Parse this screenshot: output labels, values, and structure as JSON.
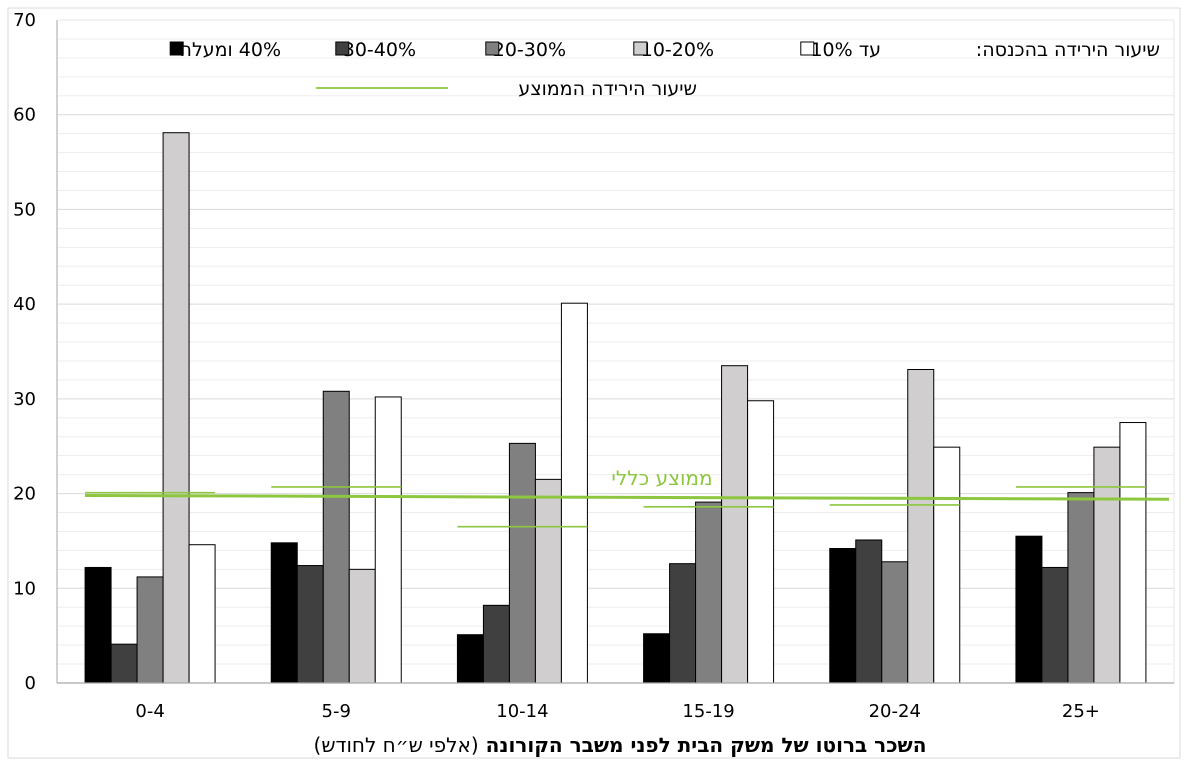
{
  "chart_data": {
    "type": "bar",
    "title": "",
    "xlabel": "השכר ברוטו של משק הבית לפני משבר הקורונה",
    "xlabel_suffix": "(אלפי ש״ח לחודש)",
    "ylabel": "",
    "ylim": [
      0,
      70
    ],
    "yticks": [
      0,
      10,
      20,
      30,
      40,
      50,
      60,
      70
    ],
    "grid": true,
    "legend_placement": "top",
    "legend_title": "שיעור הירידה בהכנסה:",
    "categories": [
      "0-4",
      "5-9",
      "10-14",
      "15-19",
      "20-24",
      "25+"
    ],
    "series": [
      {
        "name": "40% ומעלה",
        "color": "#000000",
        "values": [
          12.2,
          14.8,
          5.1,
          5.2,
          14.2,
          15.5
        ]
      },
      {
        "name": "30-40%",
        "color": "#404040",
        "values": [
          4.1,
          12.4,
          8.2,
          12.6,
          15.1,
          12.2
        ]
      },
      {
        "name": "20-30%",
        "color": "#808080",
        "values": [
          11.2,
          30.8,
          25.3,
          19.1,
          12.8,
          20.1
        ]
      },
      {
        "name": "10-20%",
        "color": "#d0cece",
        "values": [
          58.1,
          12.0,
          21.5,
          33.5,
          33.1,
          24.9
        ]
      },
      {
        "name": "עד 10%",
        "color": "#ffffff",
        "values": [
          14.6,
          30.2,
          40.1,
          29.8,
          24.9,
          27.5
        ]
      }
    ],
    "average_by_group": [
      20.1,
      20.7,
      16.5,
      18.6,
      18.8,
      20.7
    ],
    "average_label": "שיעור הירידה הממוצע",
    "overall_average": {
      "label": "ממוצע כללי",
      "start": 19.8,
      "end": 19.4
    },
    "colors": {
      "average_line": "#8dc63f",
      "grid": "#d9d9d9",
      "axis": "#a6a6a6"
    }
  }
}
